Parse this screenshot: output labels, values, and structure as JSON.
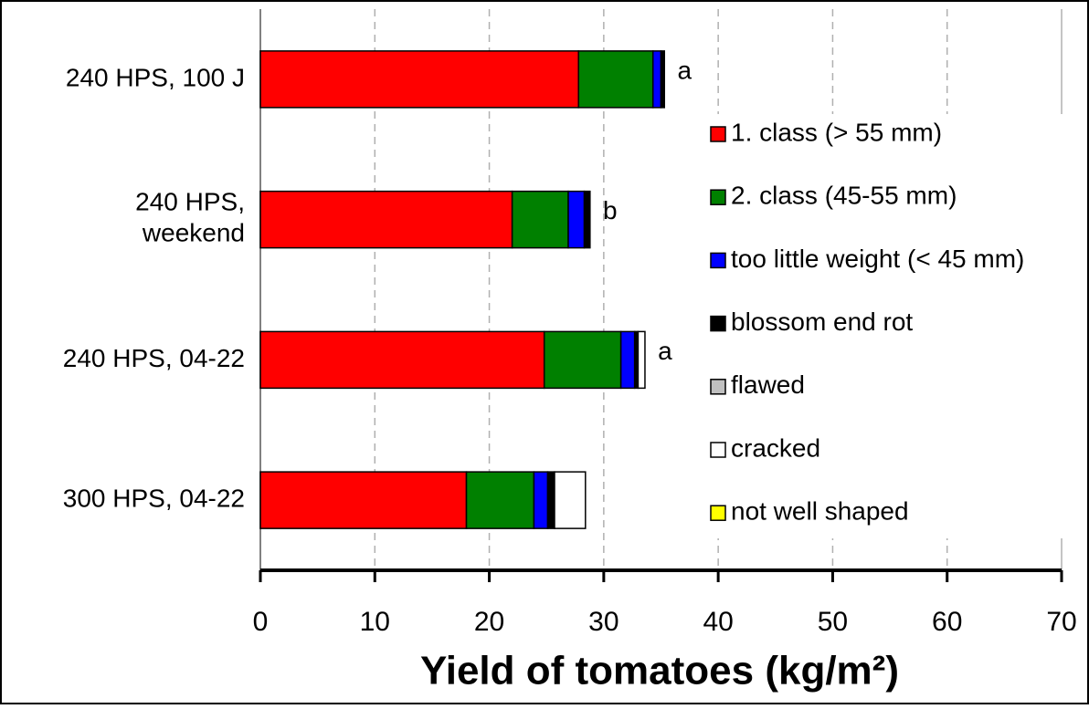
{
  "chart_data": {
    "type": "stacked-barh",
    "x_label": "Yield of tomatoes (kg/m²)",
    "categories": [
      "240 HPS, 100 J",
      "240 HPS,\nweekend",
      "240 HPS, 04-22",
      "300 HPS, 04-22"
    ],
    "significance": [
      "a",
      "b",
      "a",
      null
    ],
    "series": [
      {
        "name": "1. class (> 55 mm)",
        "color": "#ff0000",
        "values": [
          27.8,
          22.0,
          24.8,
          18.0
        ]
      },
      {
        "name": "2. class (45-55 mm)",
        "color": "#008000",
        "values": [
          6.5,
          4.9,
          6.7,
          5.9
        ]
      },
      {
        "name": "too little weight (< 45 mm)",
        "color": "#0000ff",
        "values": [
          0.7,
          1.4,
          1.2,
          1.2
        ]
      },
      {
        "name": "blossom end rot",
        "color": "#000000",
        "values": [
          0.3,
          0.5,
          0.3,
          0.6
        ]
      },
      {
        "name": "flawed",
        "color": "#c0c0c0",
        "values": [
          0,
          0,
          0,
          0
        ]
      },
      {
        "name": "cracked",
        "color": "#ffffff",
        "values": [
          0,
          0,
          0.6,
          2.7
        ]
      },
      {
        "name": "not well shaped",
        "color": "#ffff00",
        "values": [
          0,
          0,
          0,
          0
        ]
      }
    ],
    "xlim": [
      0,
      70
    ],
    "xticks": [
      0,
      10,
      20,
      30,
      40,
      50,
      60,
      70
    ],
    "grid": true
  }
}
